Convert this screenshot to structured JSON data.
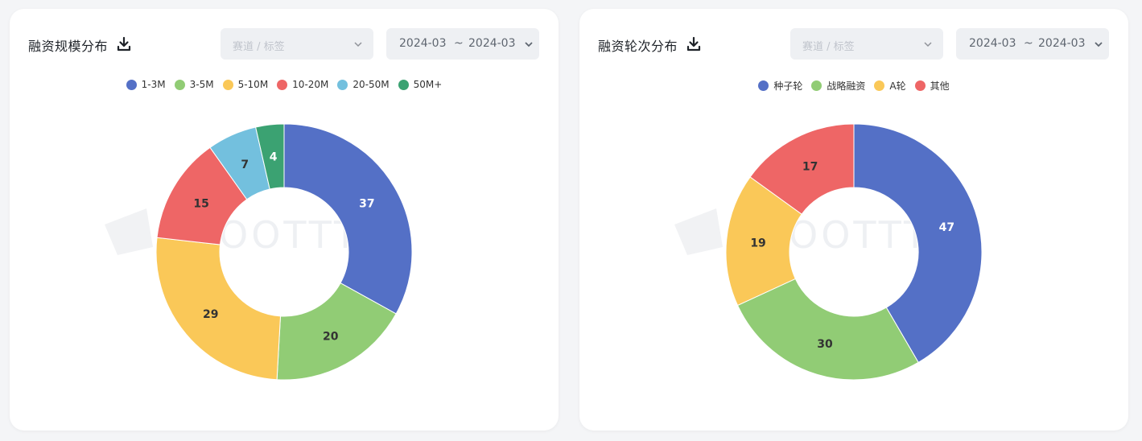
{
  "cards": [
    {
      "title": "融资规模分布",
      "tag_placeholder": "赛道 / 标签",
      "date_start": "2024-03",
      "date_sep": "~",
      "date_end": "2024-03",
      "watermark": "OOTTTA",
      "icons": {
        "download": "download-icon",
        "chevron": "chevron-down-icon"
      }
    },
    {
      "title": "融资轮次分布",
      "tag_placeholder": "赛道 / 标签",
      "date_start": "2024-03",
      "date_sep": "~",
      "date_end": "2024-03",
      "watermark": "OOTTTA",
      "icons": {
        "download": "download-icon",
        "chevron": "chevron-down-icon"
      }
    }
  ],
  "chart_data": [
    {
      "type": "pie",
      "style": "donut",
      "categories": [
        "1-3M",
        "3-5M",
        "5-10M",
        "10-20M",
        "20-50M",
        "50M+"
      ],
      "values": [
        37,
        20,
        29,
        15,
        7,
        4
      ],
      "colors": [
        "#5470c6",
        "#91cc75",
        "#fac858",
        "#ee6666",
        "#73c0de",
        "#3ba272"
      ],
      "legend_position": "top-center"
    },
    {
      "type": "pie",
      "style": "donut",
      "categories": [
        "种子轮",
        "战略融资",
        "A轮",
        "其他"
      ],
      "values": [
        47,
        30,
        19,
        17
      ],
      "colors": [
        "#5470c6",
        "#91cc75",
        "#fac858",
        "#ee6666"
      ],
      "legend_position": "top-center"
    }
  ]
}
